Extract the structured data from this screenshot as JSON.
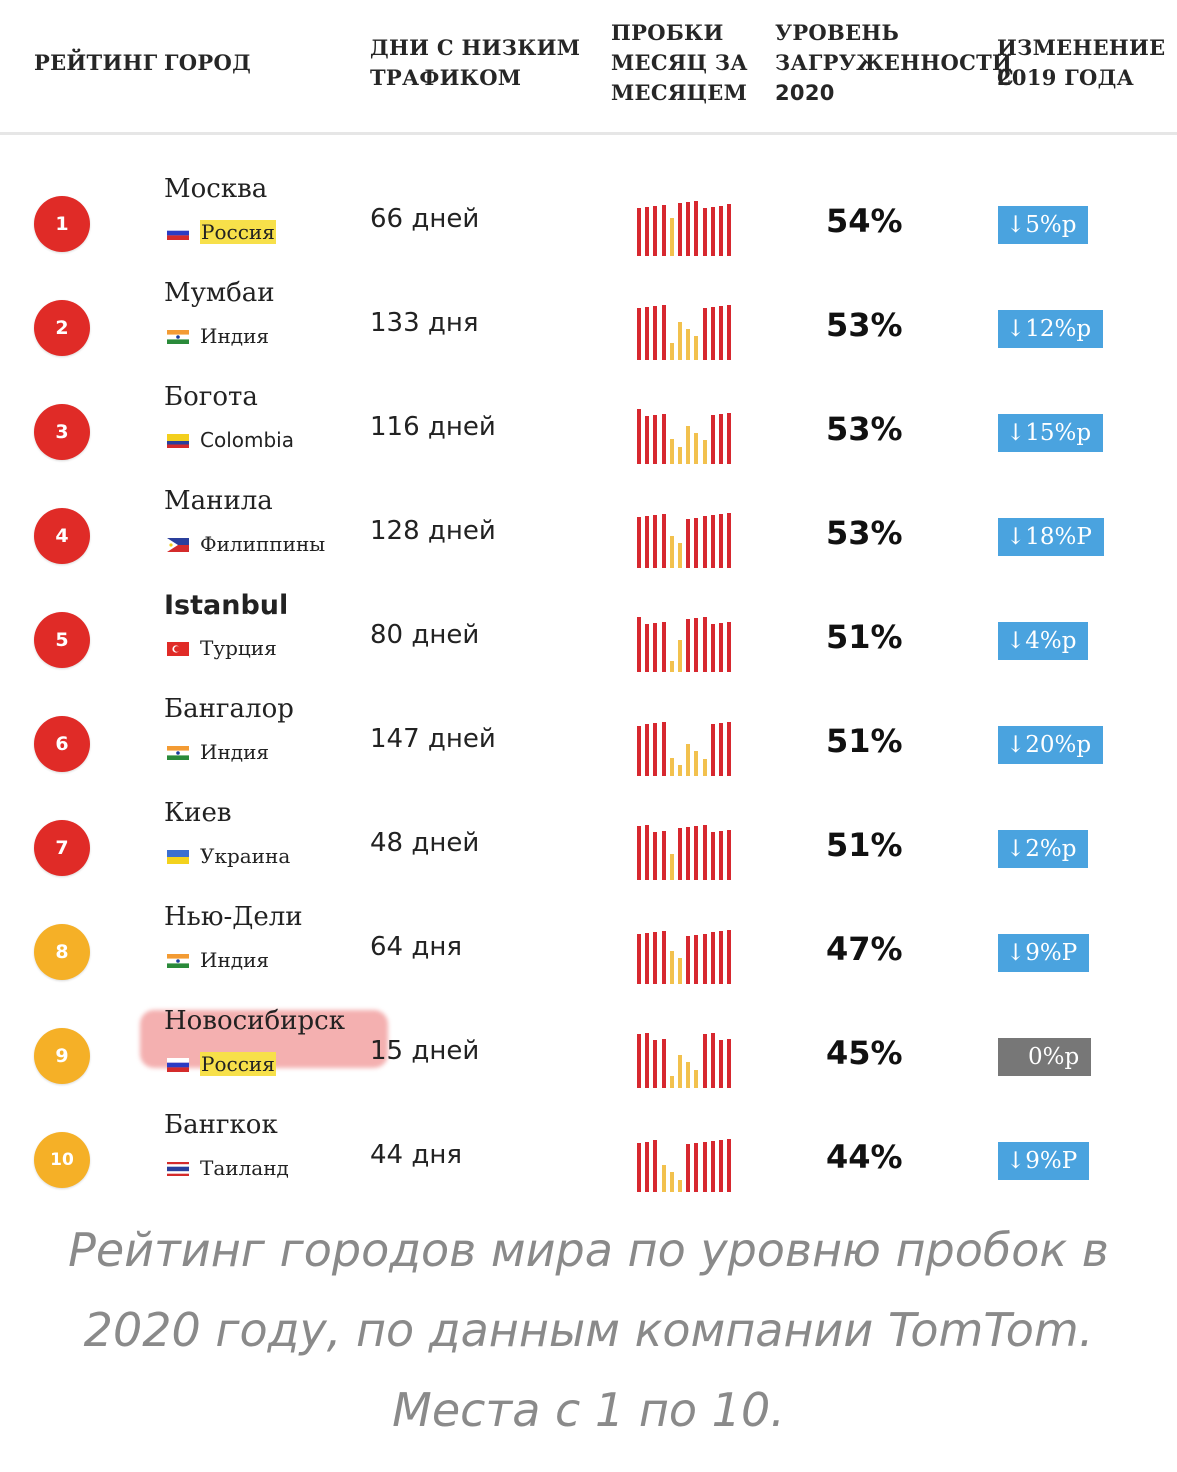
{
  "headers": {
    "rank": "РЕЙТИНГ",
    "city": "ГОРОД",
    "days_line1": "ДНИ С НИЗКИМ",
    "days_line2": "ТРАФИКОМ",
    "traffic_line1": "ПРОБКИ",
    "traffic_line2": "МЕСЯЦ ЗА",
    "traffic_line3": "МЕСЯЦЕМ",
    "level_line1": "УРОВЕНЬ",
    "level_line2": "ЗАГРУЖЕННОСТИ",
    "level_line3": "2020",
    "change_line1": "ИЗМЕНЕНИЕ С",
    "change_line2": "2019 ГОДА"
  },
  "colors": {
    "rank_red": "#e02b27",
    "rank_orange": "#f5b027",
    "bar_red": "#d7282f",
    "bar_yellow": "#f2c14e",
    "badge_blue": "#4aa3df",
    "badge_gray": "#777777",
    "country_highlight": "#f7e04a"
  },
  "rows": [
    {
      "rank": "1",
      "city": "Москва",
      "country": "Россия",
      "flag": "russia",
      "days": "66 дней",
      "level": "54%",
      "change": "↓5%р",
      "bars": "RRRyRRRRRR"
    },
    {
      "rank": "2",
      "city": "Мумбаи",
      "country": "Индия",
      "flag": "india",
      "days": "133 дня",
      "level": "53%",
      "change": "↓12%р",
      "bars": "RRRyyyRRRR"
    },
    {
      "rank": "3",
      "city": "Богота",
      "country": "Colombia",
      "flag": "colombia",
      "days": "116 дней",
      "level": "53%",
      "change": "↓15%р",
      "bars": "RRRyyyyRRR"
    },
    {
      "rank": "4",
      "city": "Манила",
      "country": "Филиппины",
      "flag": "philippines",
      "days": "128 дней",
      "level": "53%",
      "change": "↓18%Р",
      "bars": "RRRyyRRRRR"
    },
    {
      "rank": "5",
      "city": "Istanbul",
      "country": "Турция",
      "flag": "turkey",
      "days": "80 дней",
      "level": "51%",
      "change": "↓4%р",
      "bars": "RRRyyRRRRR"
    },
    {
      "rank": "6",
      "city": "Бангалор",
      "country": "Индия",
      "flag": "india",
      "days": "147 дней",
      "level": "51%",
      "change": "↓20%р",
      "bars": "RRRyyyyRRR"
    },
    {
      "rank": "7",
      "city": "Киев",
      "country": "Украина",
      "flag": "ukraine",
      "days": "48 дней",
      "level": "51%",
      "change": "↓2%р",
      "bars": "RRRyRRRRRR"
    },
    {
      "rank": "8",
      "city": "Нью-Дели",
      "country": "Индия",
      "flag": "india",
      "days": "64 дня",
      "level": "47%",
      "change": "↓9%Р",
      "bars": "RRRyyRRRRR"
    },
    {
      "rank": "9",
      "city": "Новосибирск",
      "country": "Россия",
      "flag": "russia",
      "days": "15 дней",
      "level": "45%",
      "change": "0%р",
      "bars": "RRRyyyRRRR"
    },
    {
      "rank": "10",
      "city": "Бангкок",
      "country": "Таиланд",
      "flag": "thailand",
      "days": "44 дня",
      "level": "44%",
      "change": "↓9%Р",
      "bars": "RRyyyRRRRR"
    }
  ],
  "caption": {
    "line1": "Рейтинг городов мира по уровню пробок в",
    "line2": "2020 году, по данным компании TomTom.",
    "line3": "Места с 1 по 10."
  }
}
